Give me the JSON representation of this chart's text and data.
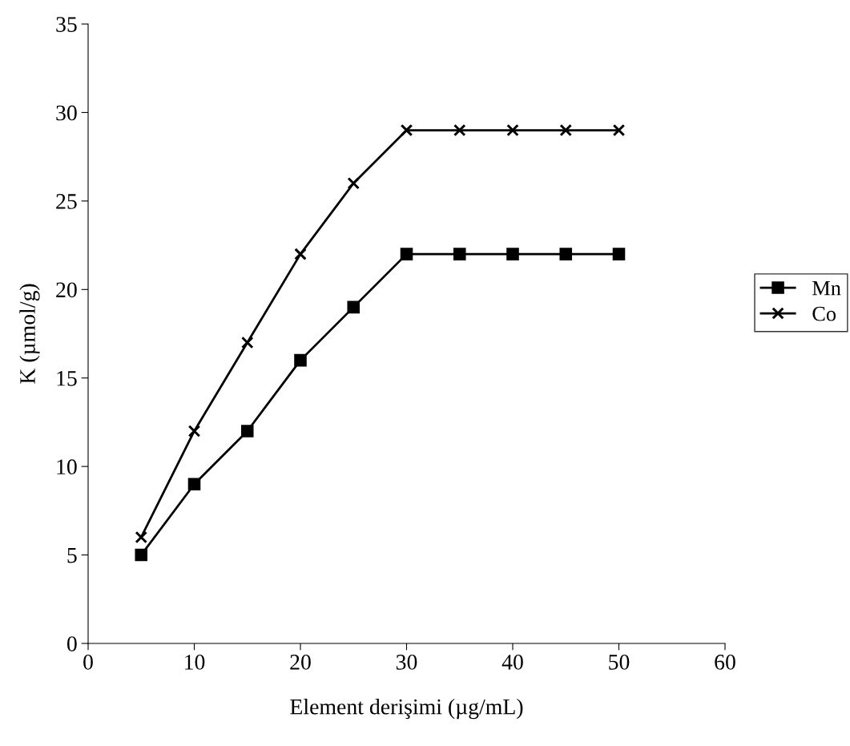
{
  "chart_data": {
    "type": "line",
    "xlabel": "Element derişimi (µg/mL)",
    "ylabel": "K (µmol/g)",
    "x": [
      5,
      10,
      15,
      20,
      25,
      30,
      35,
      40,
      45,
      50
    ],
    "series": [
      {
        "name": "Mn",
        "color": "#000000",
        "marker": "square",
        "values": [
          5,
          9,
          12,
          16,
          19,
          22,
          22,
          22,
          22,
          22
        ]
      },
      {
        "name": "Co",
        "color": "#000000",
        "marker": "cross",
        "values": [
          6,
          12,
          17,
          22,
          26,
          29,
          29,
          29,
          29,
          29
        ]
      }
    ],
    "xlim": [
      0,
      60
    ],
    "xticks": [
      0,
      10,
      20,
      30,
      40,
      50,
      60
    ],
    "ylim": [
      0,
      35
    ],
    "yticks": [
      0,
      5,
      10,
      15,
      20,
      25,
      30,
      35
    ],
    "grid": false,
    "legend": "right",
    "line_style": "solid"
  }
}
